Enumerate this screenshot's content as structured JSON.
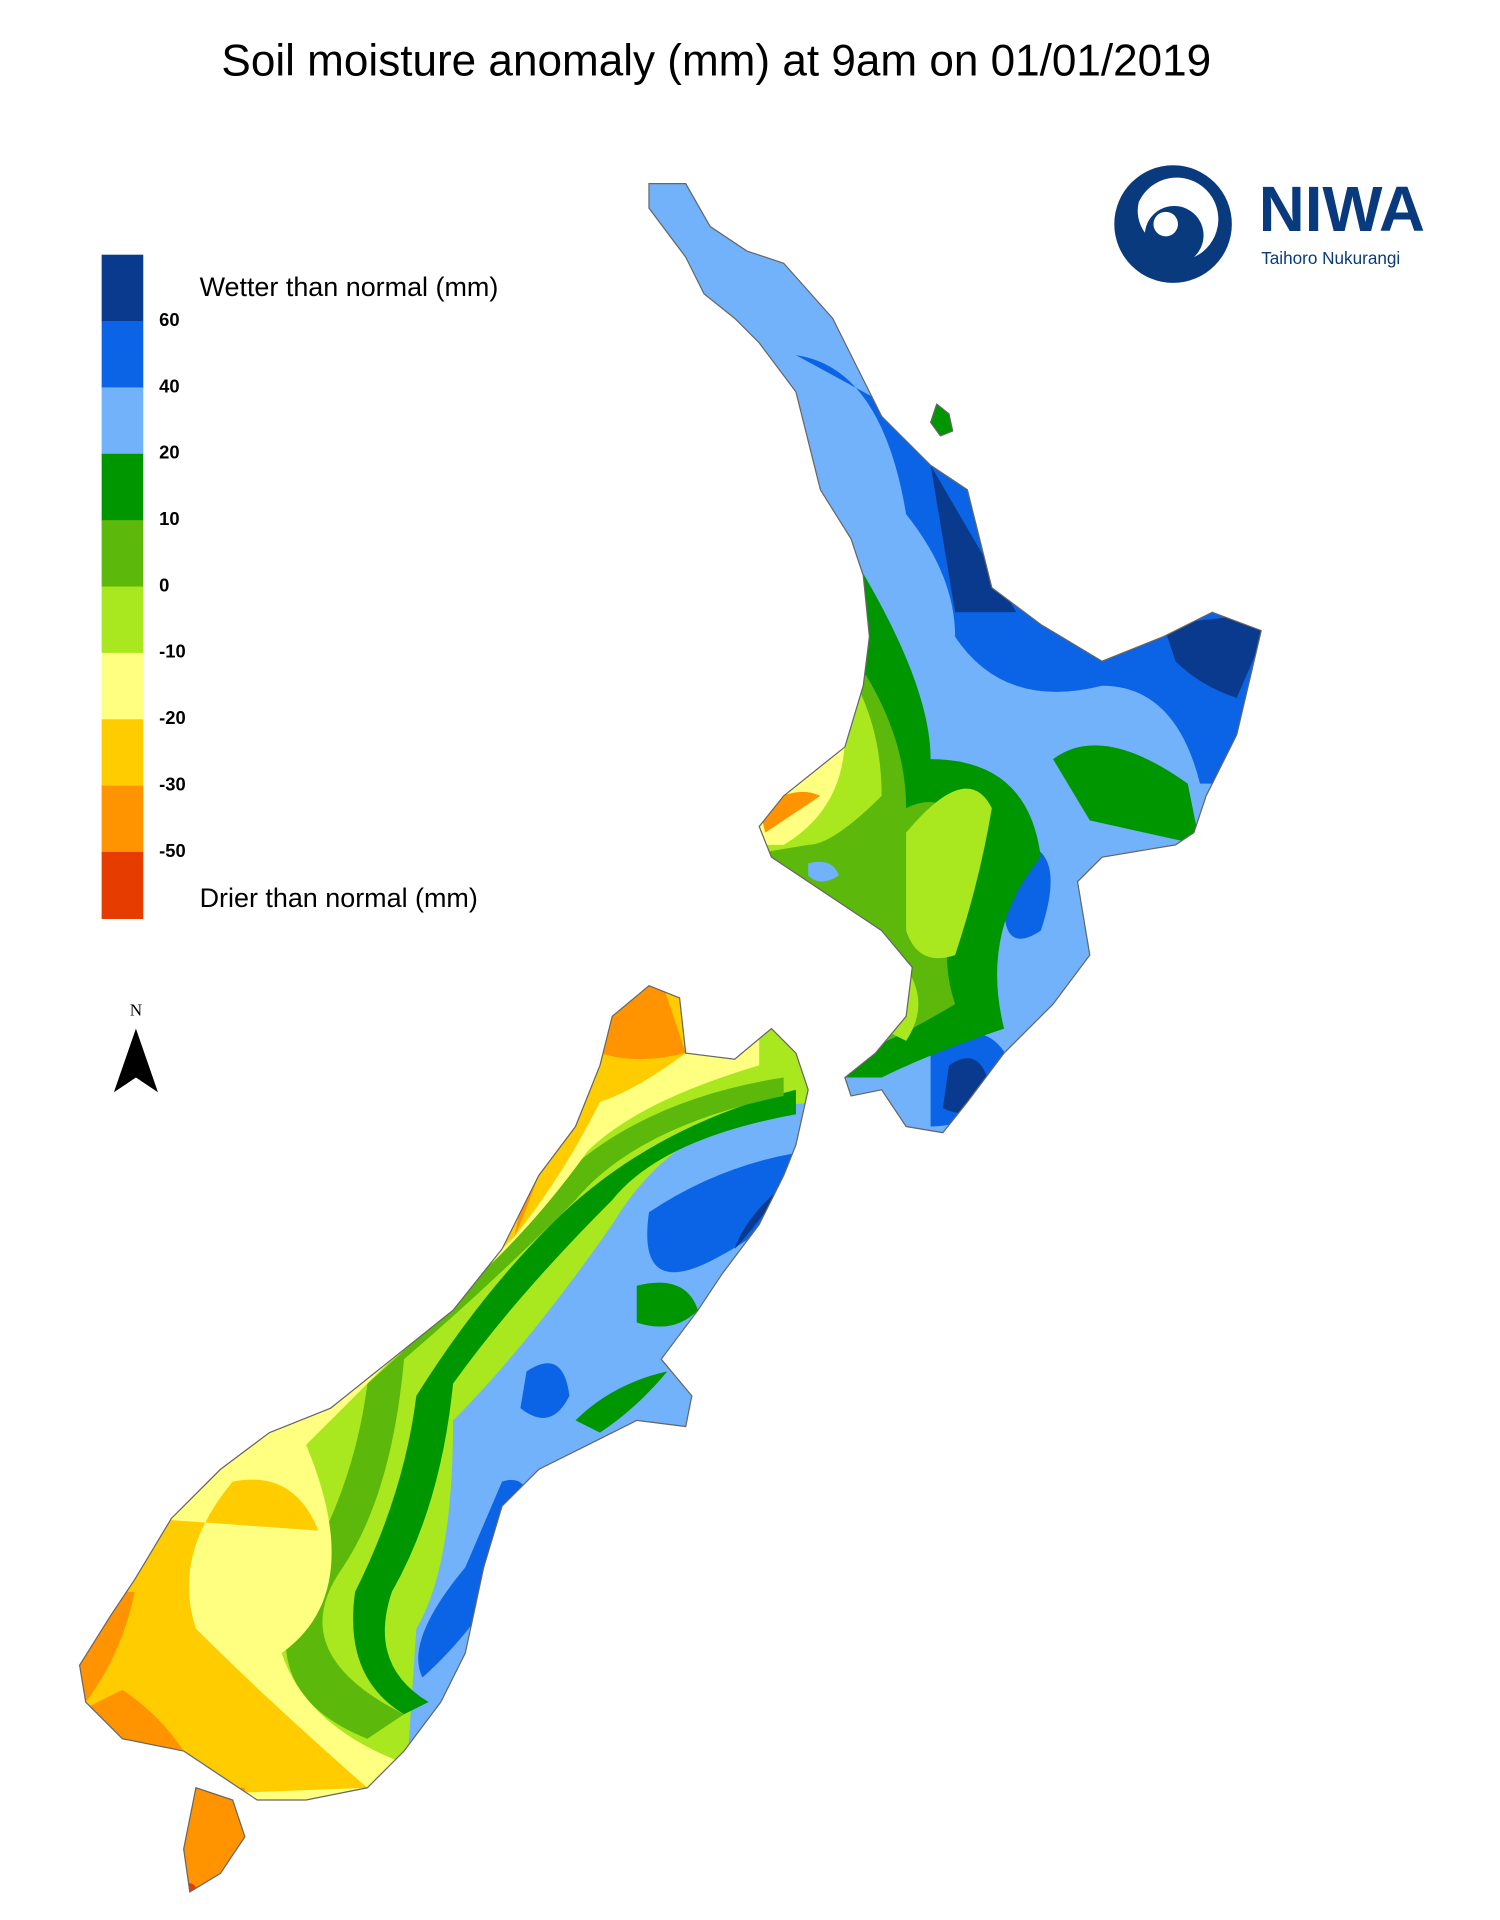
{
  "title": "Soil moisture anomaly (mm) at 9am on 01/01/2019",
  "legend": {
    "top_label": "Wetter than normal (mm)",
    "bottom_label": "Drier than normal (mm)",
    "colors": [
      "#0a3a8e",
      "#0b64e6",
      "#72b2fa",
      "#009600",
      "#5cb80a",
      "#a9e81e",
      "#ffff80",
      "#ffcc00",
      "#ff9400",
      "#e63c00"
    ],
    "ticks": [
      60,
      40,
      20,
      10,
      0,
      -10,
      -20,
      -30,
      -50
    ]
  },
  "logo": {
    "name": "NIWA",
    "subtitle": "Taihoro Nukurangi"
  },
  "north": "N"
}
